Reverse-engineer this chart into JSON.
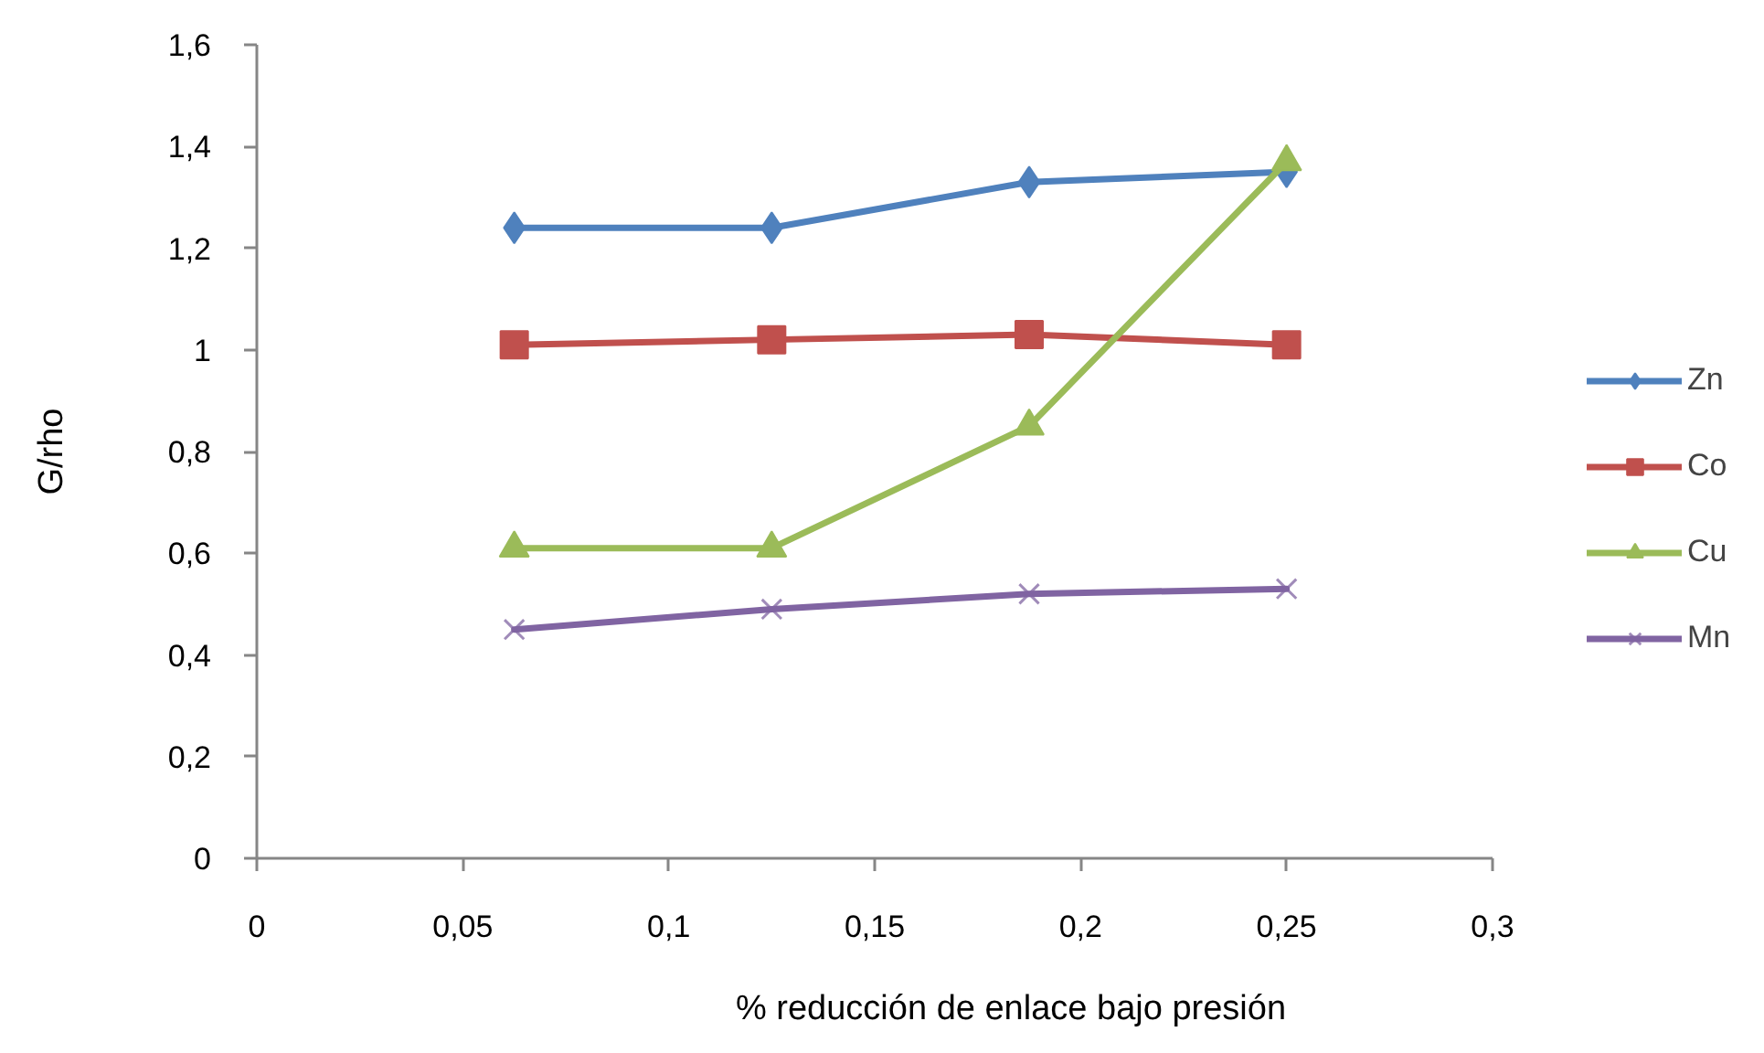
{
  "chart_data": {
    "type": "line",
    "xlabel": "% reducción de enlace bajo presión",
    "ylabel": "G/rho",
    "x": [
      0.0625,
      0.125,
      0.1875,
      0.25
    ],
    "series": [
      {
        "name": "Zn",
        "color": "#4f81bd",
        "marker": "diamond",
        "values": [
          1.24,
          1.24,
          1.33,
          1.35
        ]
      },
      {
        "name": "Co",
        "color": "#c0504d",
        "marker": "square",
        "values": [
          1.01,
          1.02,
          1.03,
          1.01
        ]
      },
      {
        "name": "Cu",
        "color": "#9bbb59",
        "marker": "triangle",
        "values": [
          0.61,
          0.61,
          0.85,
          1.37
        ]
      },
      {
        "name": "Mn",
        "color": "#8064a2",
        "marker": "cross",
        "values": [
          0.45,
          0.49,
          0.52,
          0.53
        ]
      }
    ],
    "xlim": [
      0,
      0.3
    ],
    "xticks": [
      0,
      {
        "value": 0.05,
        "label": "0,05"
      },
      {
        "value": 0.1,
        "label": "0,1"
      },
      {
        "value": 0.15,
        "label": "0,15"
      },
      {
        "value": 0.2,
        "label": "0,2"
      },
      {
        "value": 0.25,
        "label": "0,25"
      },
      {
        "value": 0.3,
        "label": "0,3"
      }
    ],
    "ylim": [
      0,
      1.6
    ],
    "yticks": [
      0,
      {
        "value": 0.2,
        "label": "0,2"
      },
      {
        "value": 0.4,
        "label": "0,4"
      },
      {
        "value": 0.6,
        "label": "0,6"
      },
      {
        "value": 0.8,
        "label": "0,8"
      },
      1,
      {
        "value": 1.2,
        "label": "1,2"
      },
      {
        "value": 1.4,
        "label": "1,4"
      },
      {
        "value": 1.6,
        "label": "1,6"
      }
    ],
    "grid": false,
    "legend": "right"
  }
}
